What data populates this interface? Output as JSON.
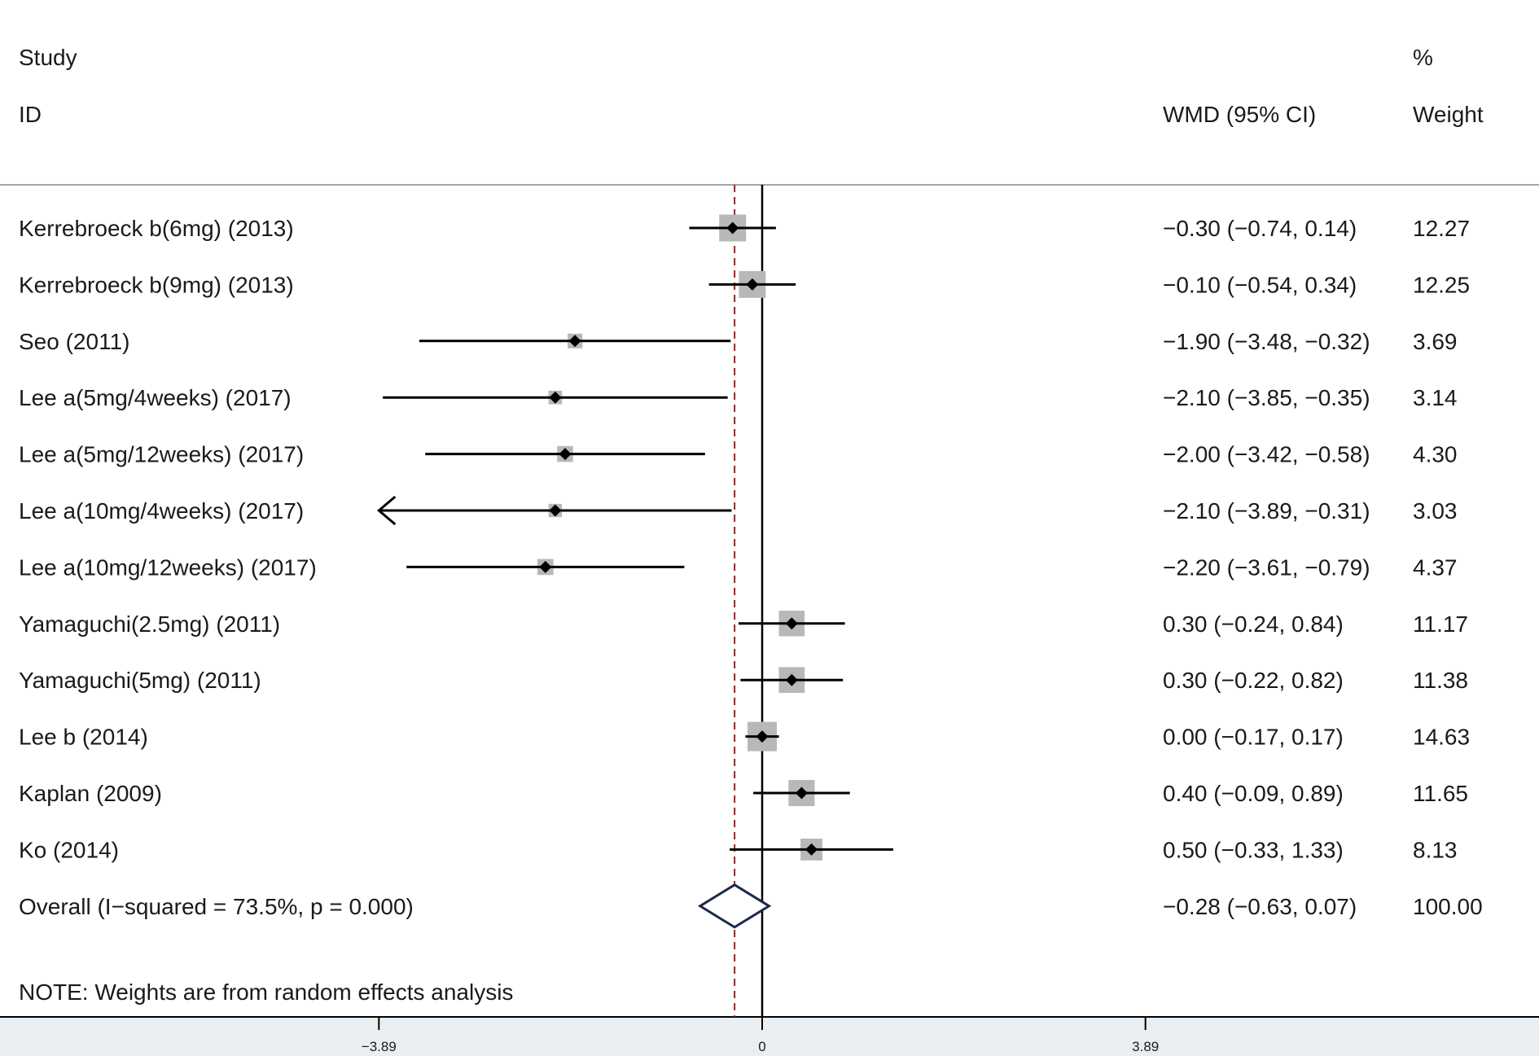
{
  "chart_data": {
    "type": "forest",
    "headers": {
      "study_line1": "Study",
      "study_line2": "ID",
      "effect": "WMD (95% CI)",
      "weight_line1": "%",
      "weight_line2": "Weight"
    },
    "studies": [
      {
        "label": "Kerrebroeck b(6mg) (2013)",
        "estimate": -0.3,
        "lower": -0.74,
        "upper": 0.14,
        "ci_text": "−0.30 (−0.74, 0.14)",
        "weight": 12.27,
        "weight_text": "12.27"
      },
      {
        "label": "Kerrebroeck b(9mg) (2013)",
        "estimate": -0.1,
        "lower": -0.54,
        "upper": 0.34,
        "ci_text": "−0.10 (−0.54, 0.34)",
        "weight": 12.25,
        "weight_text": "12.25"
      },
      {
        "label": "Seo (2011)",
        "estimate": -1.9,
        "lower": -3.48,
        "upper": -0.32,
        "ci_text": "−1.90 (−3.48, −0.32)",
        "weight": 3.69,
        "weight_text": "3.69"
      },
      {
        "label": "Lee a(5mg/4weeks) (2017)",
        "estimate": -2.1,
        "lower": -3.85,
        "upper": -0.35,
        "ci_text": "−2.10 (−3.85, −0.35)",
        "weight": 3.14,
        "weight_text": "3.14"
      },
      {
        "label": "Lee a(5mg/12weeks) (2017)",
        "estimate": -2.0,
        "lower": -3.42,
        "upper": -0.58,
        "ci_text": "−2.00 (−3.42, −0.58)",
        "weight": 4.3,
        "weight_text": "4.30"
      },
      {
        "label": "Lee a(10mg/4weeks) (2017)",
        "estimate": -2.1,
        "lower": -3.89,
        "upper": -0.31,
        "ci_text": "−2.10 (−3.89, −0.31)",
        "weight": 3.03,
        "weight_text": "3.03",
        "lower_truncated": true
      },
      {
        "label": "Lee a(10mg/12weeks) (2017)",
        "estimate": -2.2,
        "lower": -3.61,
        "upper": -0.79,
        "ci_text": "−2.20 (−3.61, −0.79)",
        "weight": 4.37,
        "weight_text": "4.37"
      },
      {
        "label": "Yamaguchi(2.5mg) (2011)",
        "estimate": 0.3,
        "lower": -0.24,
        "upper": 0.84,
        "ci_text": "0.30 (−0.24, 0.84)",
        "weight": 11.17,
        "weight_text": "11.17"
      },
      {
        "label": "Yamaguchi(5mg) (2011)",
        "estimate": 0.3,
        "lower": -0.22,
        "upper": 0.82,
        "ci_text": "0.30 (−0.22, 0.82)",
        "weight": 11.38,
        "weight_text": "11.38"
      },
      {
        "label": "Lee b (2014)",
        "estimate": 0.0,
        "lower": -0.17,
        "upper": 0.17,
        "ci_text": "0.00 (−0.17, 0.17)",
        "weight": 14.63,
        "weight_text": "14.63"
      },
      {
        "label": "Kaplan (2009)",
        "estimate": 0.4,
        "lower": -0.09,
        "upper": 0.89,
        "ci_text": "0.40 (−0.09, 0.89)",
        "weight": 11.65,
        "weight_text": "11.65"
      },
      {
        "label": "Ko (2014)",
        "estimate": 0.5,
        "lower": -0.33,
        "upper": 1.33,
        "ci_text": "0.50 (−0.33, 1.33)",
        "weight": 8.13,
        "weight_text": "8.13"
      }
    ],
    "overall": {
      "label": "Overall  (I−squared = 73.5%, p = 0.000)",
      "estimate": -0.28,
      "lower": -0.63,
      "upper": 0.07,
      "ci_text": "−0.28 (−0.63, 0.07)",
      "weight": 100.0,
      "weight_text": "100.00"
    },
    "note": "NOTE: Weights are from random effects analysis",
    "x_axis": {
      "xlim": [
        -3.89,
        3.89
      ],
      "ticks": [
        {
          "value": -3.89,
          "label": "−3.89"
        },
        {
          "value": 0,
          "label": "0"
        },
        {
          "value": 3.89,
          "label": "3.89"
        }
      ]
    },
    "reference_line": 0,
    "pooled_line": -0.28,
    "colors": {
      "text": "#1a1a1a",
      "line": "#000000",
      "weight_box": "#b8b8b8",
      "pooled_line": "#8b2a2a",
      "diamond": "#1c2a4a",
      "divider": "#a6a6a6",
      "axis_band": "#e9eef2"
    }
  }
}
